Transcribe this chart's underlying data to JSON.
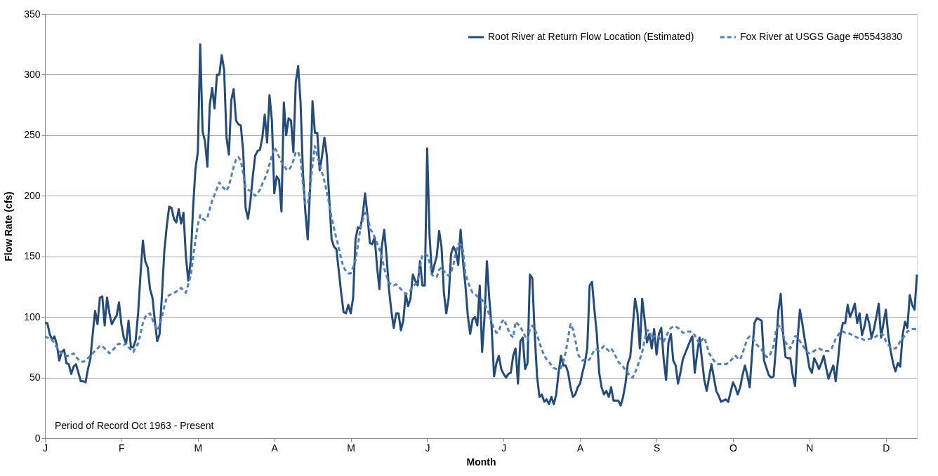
{
  "chart_data": {
    "type": "line",
    "xlabel": "Month",
    "ylabel": "Flow Rate (cfs)",
    "ylim": [
      0,
      350
    ],
    "yticks": [
      0,
      50,
      100,
      150,
      200,
      250,
      300,
      350
    ],
    "grid": "y",
    "legend": "top right",
    "marker": "none",
    "annotations": [
      "Period of Record Oct 1963 - Present"
    ],
    "categories": [
      "J",
      null,
      null,
      null,
      null,
      null,
      null,
      null,
      null,
      null,
      null,
      null,
      null,
      null,
      null,
      null,
      null,
      null,
      null,
      null,
      null,
      null,
      null,
      null,
      null,
      null,
      null,
      null,
      null,
      null,
      null,
      null,
      "F",
      null,
      null,
      null,
      null,
      null,
      null,
      null,
      null,
      null,
      null,
      null,
      null,
      null,
      null,
      null,
      null,
      null,
      null,
      null,
      null,
      null,
      null,
      null,
      null,
      null,
      null,
      null,
      null,
      null,
      null,
      null,
      "M",
      null,
      null,
      null,
      null,
      null,
      null,
      null,
      null,
      null,
      null,
      null,
      null,
      null,
      null,
      null,
      null,
      null,
      null,
      null,
      null,
      null,
      null,
      null,
      null,
      null,
      null,
      null,
      null,
      null,
      null,
      null,
      "A",
      null,
      null,
      null,
      null,
      null,
      null,
      null,
      null,
      null,
      null,
      null,
      null,
      null,
      null,
      null,
      null,
      null,
      null,
      null,
      null,
      null,
      null,
      null,
      null,
      null,
      null,
      null,
      null,
      null,
      null,
      null,
      "M",
      null,
      null,
      null,
      null,
      null,
      null,
      null,
      null,
      null,
      null,
      null,
      null,
      null,
      null,
      null,
      null,
      null,
      null,
      null,
      null,
      null,
      null,
      null,
      null,
      null,
      null,
      null,
      null,
      null,
      null,
      null,
      "J",
      null,
      null,
      null,
      null,
      null,
      null,
      null,
      null,
      null,
      null,
      null,
      null,
      null,
      null,
      null,
      null,
      null,
      null,
      null,
      null,
      null,
      null,
      null,
      null,
      null,
      null,
      null,
      null,
      null,
      null,
      null,
      "J",
      null,
      null,
      null,
      null,
      null,
      null,
      null,
      null,
      null,
      null,
      null,
      null,
      null,
      null,
      null,
      null,
      null,
      null,
      null,
      null,
      null,
      null,
      null,
      null,
      null,
      null,
      null,
      null,
      null,
      null,
      null,
      "A",
      null,
      null,
      null,
      null,
      null,
      null,
      null,
      null,
      null,
      null,
      null,
      null,
      null,
      null,
      null,
      null,
      null,
      null,
      null,
      null,
      null,
      null,
      null,
      null,
      null,
      null,
      null,
      null,
      null,
      null,
      null,
      "S",
      null,
      null,
      null,
      null,
      null,
      null,
      null,
      null,
      null,
      null,
      null,
      null,
      null,
      null,
      null,
      null,
      null,
      null,
      null,
      null,
      null,
      null,
      null,
      null,
      null,
      null,
      null,
      null,
      null,
      null,
      null,
      "O",
      null,
      null,
      null,
      null,
      null,
      null,
      null,
      null,
      null,
      null,
      null,
      null,
      null,
      null,
      null,
      null,
      null,
      null,
      null,
      null,
      null,
      null,
      null,
      null,
      null,
      null,
      null,
      null,
      null,
      null,
      null,
      "N",
      null,
      null,
      null,
      null,
      null,
      null,
      null,
      null,
      null,
      null,
      null,
      null,
      null,
      null,
      null,
      null,
      null,
      null,
      null,
      null,
      null,
      null,
      null,
      null,
      null,
      null,
      null,
      null,
      null,
      null,
      null,
      "D",
      null,
      null,
      null,
      null,
      null,
      null,
      null,
      null,
      null,
      null,
      null,
      null,
      null
    ],
    "series": [
      {
        "name": "Root River at Return Flow Location (Estimated)",
        "color": "#234b7c",
        "line_style": "solid",
        "values": [
          95,
          95,
          86,
          81,
          84,
          77,
          64,
          71,
          73,
          62,
          61,
          53,
          59,
          61,
          54,
          47,
          47,
          46,
          57,
          65,
          86,
          105,
          94,
          116,
          117,
          93,
          116,
          103,
          94,
          98,
          101,
          112,
          94,
          83,
          78,
          97,
          75,
          75,
          81,
          103,
          135,
          163,
          146,
          141,
          123,
          116,
          97,
          80,
          86,
          119,
          155,
          175,
          191,
          190,
          181,
          178,
          189,
          177,
          186,
          150,
          130,
          146,
          190,
          222,
          236,
          325,
          253,
          245,
          224,
          275,
          289,
          272,
          300,
          300,
          316,
          304,
          248,
          234,
          279,
          288,
          262,
          259,
          258,
          236,
          190,
          181,
          195,
          216,
          233,
          237,
          238,
          248,
          267,
          244,
          283,
          262,
          202,
          216,
          213,
          187,
          277,
          250,
          264,
          262,
          236,
          294,
          307,
          277,
          219,
          187,
          164,
          207,
          278,
          252,
          252,
          221,
          233,
          248,
          233,
          198,
          164,
          158,
          156,
          138,
          120,
          104,
          103,
          110,
          103,
          116,
          164,
          174,
          173,
          184,
          202,
          184,
          161,
          160,
          166,
          142,
          123,
          158,
          172,
          150,
          123,
          105,
          91,
          103,
          103,
          89,
          97,
          119,
          109,
          115,
          135,
          130,
          126,
          146,
          126,
          126,
          239,
          167,
          135,
          143,
          150,
          171,
          158,
          120,
          103,
          116,
          152,
          158,
          154,
          143,
          172,
          146,
          126,
          101,
          86,
          98,
          100,
          93,
          126,
          71,
          100,
          146,
          115,
          91,
          51,
          62,
          68,
          57,
          53,
          50,
          53,
          54,
          68,
          74,
          45,
          80,
          83,
          57,
          62,
          135,
          132,
          86,
          51,
          34,
          36,
          30,
          32,
          28,
          34,
          28,
          36,
          54,
          68,
          60,
          60,
          54,
          42,
          34,
          36,
          42,
          45,
          54,
          62,
          74,
          126,
          129,
          106,
          86,
          54,
          42,
          36,
          39,
          34,
          42,
          31,
          31,
          31,
          27,
          34,
          45,
          62,
          67,
          90,
          115,
          104,
          74,
          115,
          98,
          79,
          86,
          74,
          90,
          69,
          86,
          91,
          65,
          48,
          79,
          86,
          64,
          60,
          45,
          54,
          65,
          70,
          75,
          80,
          84,
          54,
          70,
          83,
          65,
          48,
          39,
          50,
          61,
          50,
          39,
          35,
          30,
          31,
          32,
          30,
          38,
          46,
          42,
          36,
          42,
          52,
          60,
          52,
          42,
          70,
          95,
          99,
          98,
          97,
          64,
          58,
          52,
          50,
          51,
          75,
          105,
          119,
          85,
          67,
          66,
          66,
          52,
          43,
          80,
          106,
          95,
          82,
          70,
          58,
          54,
          66,
          62,
          57,
          62,
          68,
          58,
          49,
          55,
          60,
          47,
          65,
          85,
          95,
          95,
          110,
          100,
          105,
          111,
          95,
          103,
          85,
          92,
          102,
          95,
          83,
          90,
          100,
          111,
          83,
          95,
          106,
          85,
          72,
          62,
          55,
          62,
          59,
          85,
          96,
          91,
          118,
          110,
          106,
          135
        ]
      },
      {
        "name": "Fox River at USGS Gage #05543830",
        "color": "#4f81bd",
        "line_style": "dashed",
        "values": [
          84,
          83,
          82,
          81,
          78,
          75,
          72,
          70,
          69,
          68,
          68,
          69,
          70,
          67,
          65,
          63,
          63,
          64,
          66,
          68,
          70,
          72,
          74,
          76,
          76,
          74,
          72,
          70,
          72,
          74,
          77,
          78,
          77,
          77,
          78,
          75,
          73,
          71,
          75,
          78,
          86,
          95,
          100,
          102,
          103,
          98,
          93,
          89,
          93,
          100,
          109,
          116,
          118,
          119,
          120,
          121,
          122,
          124,
          122,
          120,
          127,
          134,
          149,
          163,
          176,
          184,
          181,
          180,
          182,
          189,
          196,
          201,
          206,
          211,
          208,
          206,
          204,
          208,
          216,
          224,
          230,
          232,
          229,
          218,
          207,
          205,
          204,
          202,
          200,
          202,
          205,
          210,
          214,
          219,
          226,
          233,
          240,
          237,
          232,
          228,
          225,
          222,
          221,
          224,
          229,
          236,
          236,
          231,
          209,
          193,
          193,
          207,
          225,
          241,
          233,
          226,
          219,
          212,
          203,
          193,
          182,
          173,
          165,
          157,
          148,
          141,
          138,
          136,
          136,
          141,
          147,
          159,
          173,
          180,
          186,
          186,
          173,
          170,
          166,
          161,
          156,
          150,
          140,
          134,
          128,
          127,
          126,
          127,
          125,
          123,
          121,
          119,
          120,
          122,
          125,
          127,
          129,
          142,
          151,
          152,
          151,
          145,
          135,
          133,
          133,
          139,
          141,
          138,
          135,
          134,
          137,
          143,
          153,
          160,
          160,
          155,
          136,
          129,
          124,
          120,
          119,
          117,
          115,
          114,
          111,
          107,
          102,
          96,
          90,
          87,
          88,
          95,
          98,
          94,
          89,
          85,
          83,
          96,
          94,
          92,
          88,
          84,
          81,
          90,
          93,
          90,
          85,
          79,
          73,
          68,
          65,
          63,
          60,
          58,
          57,
          57,
          58,
          63,
          71,
          83,
          94,
          90,
          81,
          70,
          66,
          64,
          65,
          64,
          65,
          69,
          73,
          73,
          72,
          74,
          76,
          74,
          72,
          74,
          71,
          67,
          63,
          61,
          59,
          56,
          54,
          51,
          50,
          54,
          59,
          65,
          71,
          81,
          89,
          89,
          82,
          84,
          85,
          83,
          81,
          80,
          84,
          88,
          91,
          92,
          92,
          91,
          89,
          87,
          87,
          88,
          88,
          87,
          85,
          81,
          78,
          81,
          83,
          77,
          70,
          67,
          64,
          62,
          61,
          61,
          61,
          61,
          62,
          64,
          66,
          68,
          66,
          65,
          70,
          76,
          82,
          84,
          83,
          80,
          77,
          75,
          73,
          70,
          67,
          67,
          71,
          76,
          89,
          92,
          93,
          85,
          79,
          76,
          74,
          79,
          84,
          84,
          80,
          77,
          74,
          71,
          70,
          71,
          72,
          73,
          74,
          73,
          72,
          72,
          72,
          73,
          77,
          82,
          85,
          88,
          88,
          87,
          87,
          86,
          85,
          84,
          83,
          82,
          82,
          81,
          81,
          82,
          82,
          83,
          84,
          86,
          86,
          85,
          80,
          77,
          75,
          74,
          74,
          76,
          80,
          82,
          85,
          88,
          89,
          90,
          90,
          90
        ]
      }
    ]
  }
}
